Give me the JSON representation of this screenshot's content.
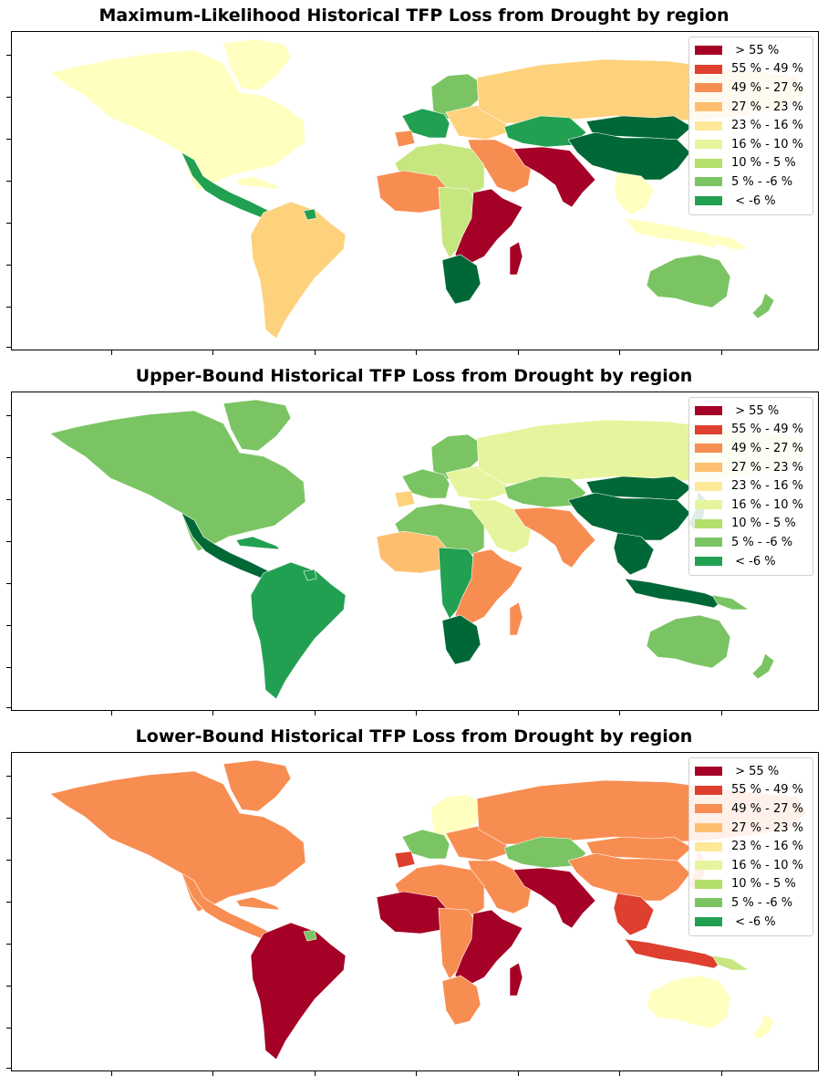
{
  "palette": {
    "c1": "#a50026",
    "c2": "#de3f2e",
    "c3": "#f88d52",
    "c4": "#fdbf6f",
    "c5": "#fed27c",
    "c6": "#ffffbf",
    "c7": "#e6f59d",
    "c8": "#c6e77f",
    "c9": "#7bc463",
    "c10": "#22a052",
    "c11": "#006837"
  },
  "legend": [
    {
      "label": " > 55 %",
      "color": "#a50026"
    },
    {
      "label": "55 % - 49 %",
      "color": "#de3f2e"
    },
    {
      "label": "49 % - 27 %",
      "color": "#f88d52"
    },
    {
      "label": "27 % - 23 %",
      "color": "#fdbf6f"
    },
    {
      "label": "23 % - 16 %",
      "color": "#fee999"
    },
    {
      "label": "16 % - 10 %",
      "color": "#e6f59d"
    },
    {
      "label": "10 % - 5 %",
      "color": "#b5df6b"
    },
    {
      "label": "5 % - -6 %",
      "color": "#7bc463"
    },
    {
      "label": " < -6 %",
      "color": "#22a052"
    }
  ],
  "panels": [
    {
      "title": "Maximum-Likelihood Historical TFP Loss from Drought by region",
      "regions": {
        "north_america": "c6",
        "greenland": "c6",
        "mexico_central": "c10",
        "caribbean": "c6",
        "south_america": "c5",
        "guyana": "c10",
        "scandinavia": "c9",
        "western_europe": "c10",
        "eastern_europe": "c5",
        "iberia": "c3",
        "russia": "c5",
        "central_asia": "c10",
        "china": "c11",
        "mongolia_east": "c11",
        "middle_east": "c3",
        "south_asia": "c1",
        "southeast_asia": "c6",
        "indonesia": "c6",
        "japan": "c6",
        "north_africa": "c8",
        "west_africa": "c3",
        "central_africa": "c8",
        "east_africa": "c1",
        "southern_africa": "c11",
        "madagascar": "c1",
        "australia": "c9",
        "new_zealand": "c9",
        "png": "c6"
      }
    },
    {
      "title": "Upper-Bound Historical TFP Loss from Drought by region",
      "regions": {
        "north_america": "c9",
        "greenland": "c9",
        "mexico_central": "c11",
        "caribbean": "c10",
        "south_america": "c10",
        "guyana": "c10",
        "scandinavia": "c9",
        "western_europe": "c9",
        "eastern_europe": "c7",
        "iberia": "c5",
        "russia": "c7",
        "central_asia": "c9",
        "china": "c11",
        "mongolia_east": "c11",
        "middle_east": "c7",
        "south_asia": "c3",
        "southeast_asia": "c11",
        "indonesia": "c11",
        "japan": "c11",
        "north_africa": "c9",
        "west_africa": "c4",
        "central_africa": "c10",
        "east_africa": "c3",
        "southern_africa": "c11",
        "madagascar": "c3",
        "australia": "c9",
        "new_zealand": "c9",
        "png": "c9"
      }
    },
    {
      "title": "Lower-Bound Historical TFP Loss from Drought by region",
      "regions": {
        "north_america": "c3",
        "greenland": "c3",
        "mexico_central": "c3",
        "caribbean": "c3",
        "south_america": "c1",
        "guyana": "c9",
        "scandinavia": "c6",
        "western_europe": "c9",
        "eastern_europe": "c3",
        "iberia": "c2",
        "russia": "c3",
        "central_asia": "c9",
        "china": "c3",
        "mongolia_east": "c3",
        "middle_east": "c3",
        "south_asia": "c1",
        "southeast_asia": "c2",
        "indonesia": "c2",
        "japan": "c3",
        "north_africa": "c3",
        "west_africa": "c1",
        "central_africa": "c3",
        "east_africa": "c1",
        "southern_africa": "c3",
        "madagascar": "c1",
        "australia": "c6",
        "new_zealand": "c6",
        "png": "c8"
      }
    }
  ]
}
